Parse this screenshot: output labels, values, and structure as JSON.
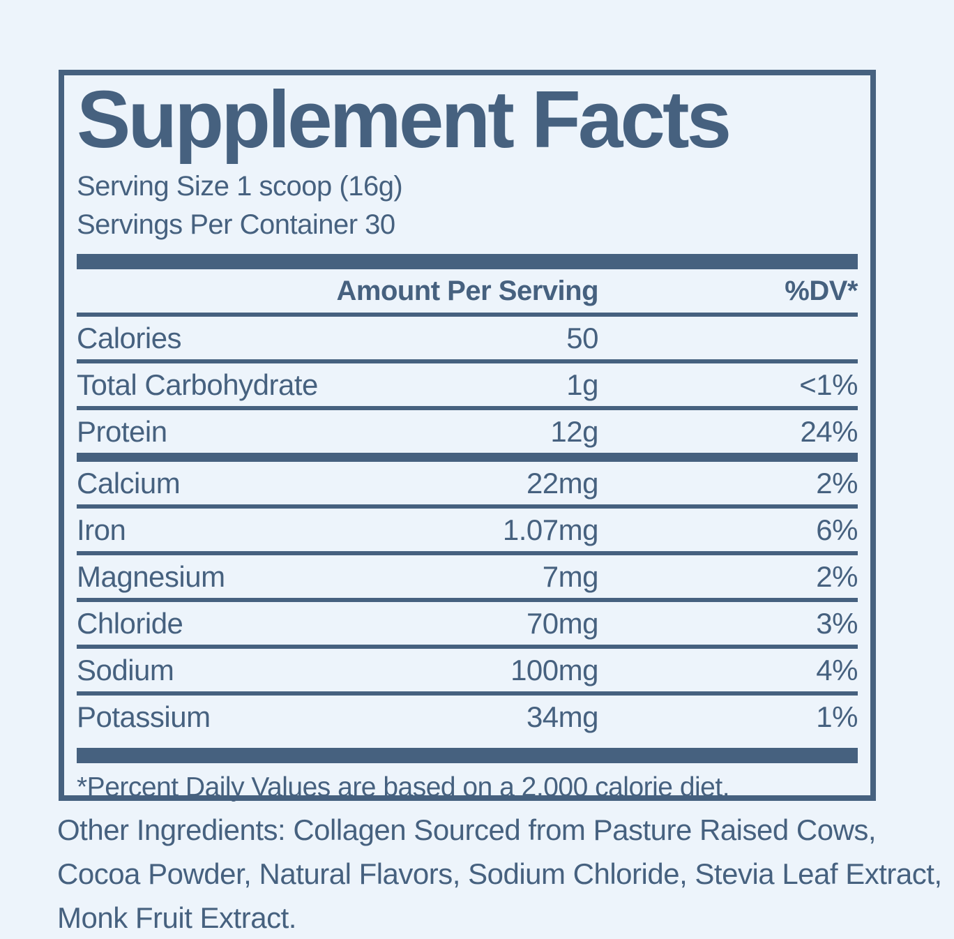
{
  "colors": {
    "ink": "#46617f",
    "background": "#edf4fb"
  },
  "panel": {
    "title": "Supplement Facts",
    "serving_size": "Serving Size 1 scoop (16g)",
    "servings_per_container": "Servings Per Container 30",
    "columns": {
      "amount": "Amount Per Serving",
      "dv": "%DV*"
    },
    "rows": [
      {
        "name": "Calories",
        "amount": "50",
        "dv": ""
      },
      {
        "name": "Total Carbohydrate",
        "amount": "1g",
        "dv": "<1%"
      },
      {
        "name": "Protein",
        "amount": "12g",
        "dv": "24%"
      },
      {
        "name": "Calcium",
        "amount": "22mg",
        "dv": "2%"
      },
      {
        "name": "Iron",
        "amount": "1.07mg",
        "dv": "6%"
      },
      {
        "name": "Magnesium",
        "amount": "7mg",
        "dv": "2%"
      },
      {
        "name": "Chloride",
        "amount": "70mg",
        "dv": "3%"
      },
      {
        "name": "Sodium",
        "amount": "100mg",
        "dv": "4%"
      },
      {
        "name": "Potassium",
        "amount": "34mg",
        "dv": "1%"
      }
    ],
    "footnote": "*Percent Daily Values are based on a 2,000 calorie diet."
  },
  "ingredients": {
    "lines": [
      "Other Ingredients: Collagen Sourced from Pasture Raised Cows,",
      "Cocoa Powder, Natural Flavors, Sodium Chloride, Stevia Leaf Extract,",
      "Monk Fruit Extract."
    ]
  }
}
